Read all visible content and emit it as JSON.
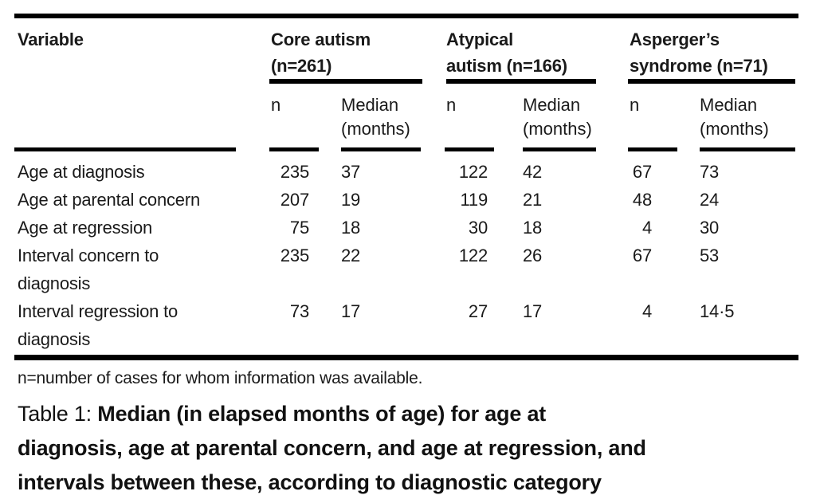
{
  "table": {
    "header": {
      "variable": "Variable",
      "groups": [
        {
          "line1": "Core autism",
          "line2": "(n=261)"
        },
        {
          "line1": "Atypical",
          "line2": "autism (n=166)"
        },
        {
          "line1": "Asperger’s",
          "line2": "syndrome (n=71)"
        }
      ],
      "sub": {
        "n": "n",
        "median_line1": "Median",
        "median_line2": "(months)"
      }
    },
    "rows": [
      {
        "label_lines": [
          "Age at diagnosis"
        ],
        "values": [
          "235",
          "37",
          "122",
          "42",
          "67",
          "73"
        ]
      },
      {
        "label_lines": [
          "Age at parental concern"
        ],
        "values": [
          "207",
          "19",
          "119",
          "21",
          "48",
          "24"
        ]
      },
      {
        "label_lines": [
          "Age at regression"
        ],
        "values": [
          "75",
          "18",
          "30",
          "18",
          "4",
          "30"
        ]
      },
      {
        "label_lines": [
          "Interval concern to",
          "diagnosis"
        ],
        "values": [
          "235",
          "22",
          "122",
          "26",
          "67",
          "53"
        ]
      },
      {
        "label_lines": [
          "Interval regression to",
          "diagnosis"
        ],
        "values": [
          "73",
          "17",
          "27",
          "17",
          "4",
          "14·5"
        ]
      }
    ],
    "footnote": "n=number of cases for whom information was available.",
    "caption": {
      "prefix": "Table 1: ",
      "line1": "Median (in elapsed months of age) for age at",
      "line2": "diagnosis, age at parental concern, and age at regression, and",
      "line3": "intervals between these, according to diagnostic category"
    }
  },
  "colors": {
    "text": "#1a1a1a",
    "rule": "#000000",
    "background": "#ffffff"
  }
}
